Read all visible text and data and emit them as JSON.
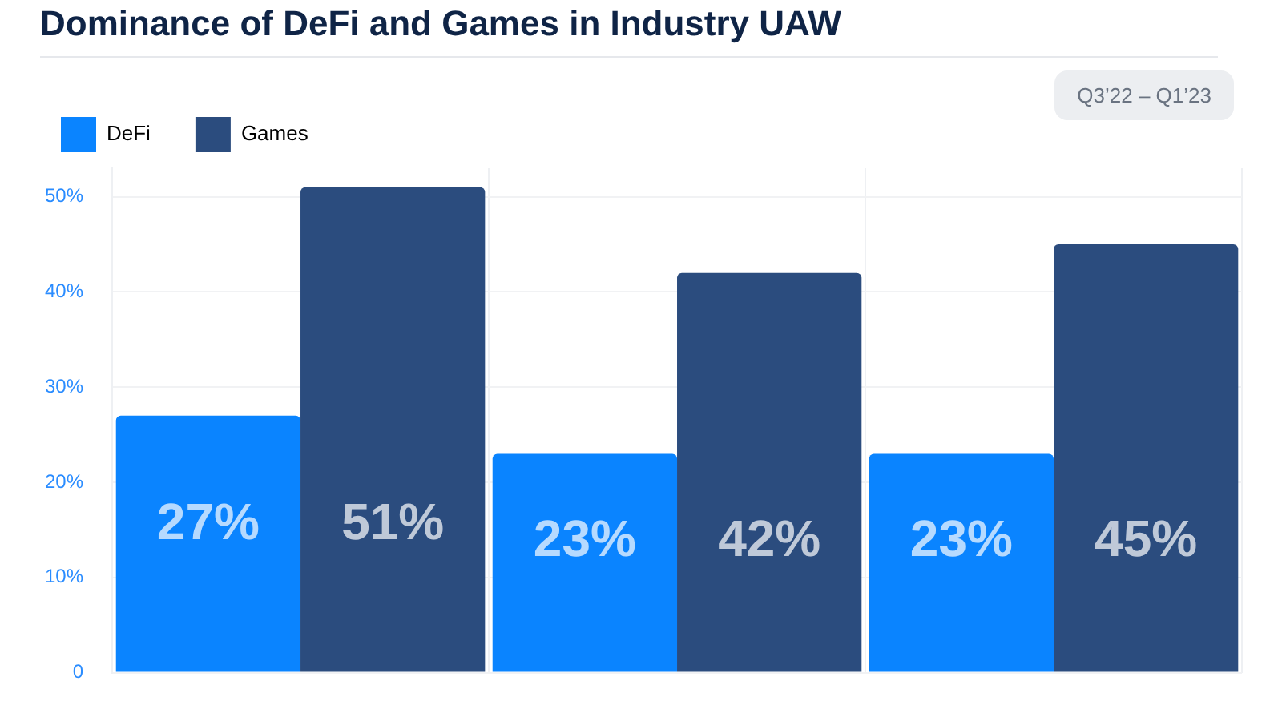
{
  "chart_data": {
    "type": "bar",
    "title": "Dominance of DeFi and Games in Industry UAW",
    "subtitle": "Q3’22 – Q1’23",
    "categories": [
      null,
      null,
      null
    ],
    "series": [
      {
        "name": "DeFi",
        "color": "#0a84ff",
        "values": [
          27,
          23,
          23
        ],
        "value_labels": [
          "27%",
          "23%",
          "23%"
        ]
      },
      {
        "name": "Games",
        "color": "#2b4c7e",
        "values": [
          51,
          42,
          45
        ],
        "value_labels": [
          "51%",
          "42%",
          "45%"
        ]
      }
    ],
    "ylim": [
      0,
      53
    ],
    "yticks": [
      {
        "value": 0,
        "label": "0"
      },
      {
        "value": 10,
        "label": "10%"
      },
      {
        "value": 20,
        "label": "20%"
      },
      {
        "value": 30,
        "label": "30%"
      },
      {
        "value": 40,
        "label": "40%"
      },
      {
        "value": 50,
        "label": "50%"
      }
    ],
    "grid": true,
    "legend": "top left"
  }
}
